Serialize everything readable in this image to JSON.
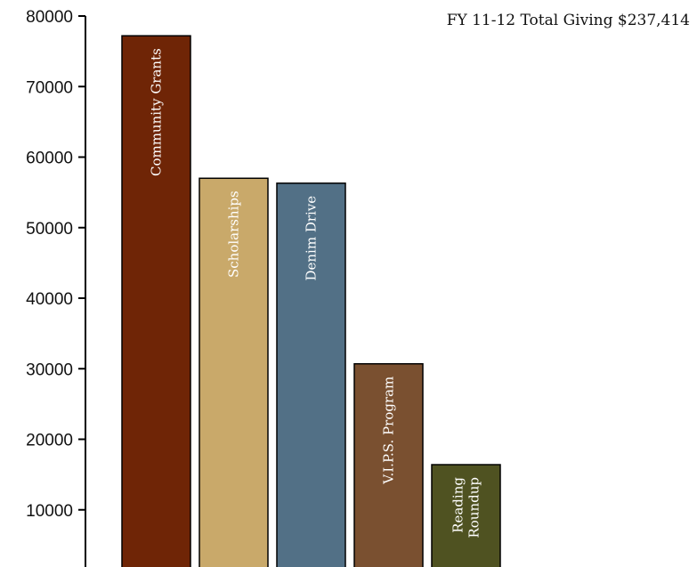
{
  "chart_data": {
    "type": "bar",
    "title": "FY 11-12 Total Giving $237,414",
    "xlabel": "",
    "ylabel": "",
    "ylim": [
      0,
      80000
    ],
    "yticks": [
      10000,
      20000,
      30000,
      40000,
      50000,
      60000,
      70000,
      80000
    ],
    "grid": false,
    "categories": [
      "Community Grants",
      "Scholarships",
      "Denim Drive",
      "V.I.P.S. Program",
      "Reading Roundup"
    ],
    "category_lines": [
      [
        "Community Grants"
      ],
      [
        "Scholarships"
      ],
      [
        "Denim Drive"
      ],
      [
        "V.I.P.S. Program"
      ],
      [
        "Reading",
        "Roundup"
      ]
    ],
    "values": [
      77200,
      57000,
      56300,
      30700,
      16400
    ],
    "colors": [
      "#6f2506",
      "#c9a96a",
      "#527086",
      "#7a5030",
      "#4f5221"
    ]
  }
}
